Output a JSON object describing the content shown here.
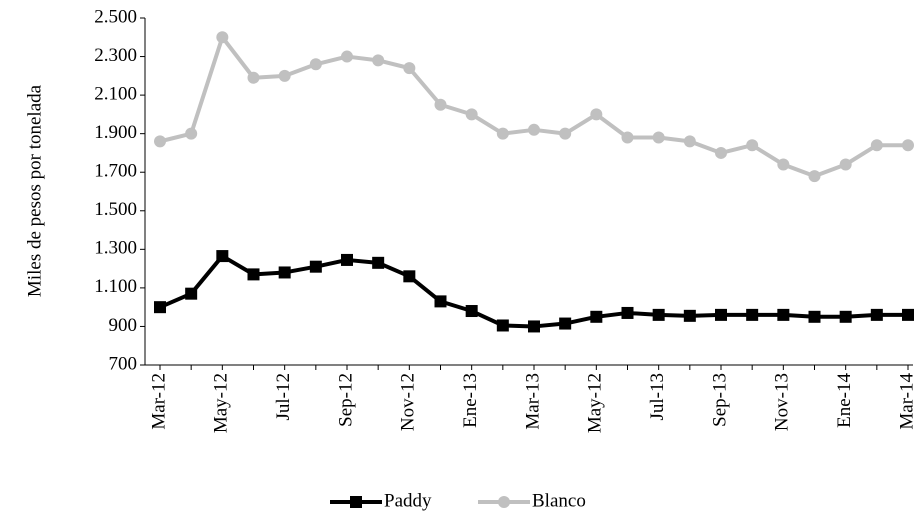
{
  "chart_data": {
    "type": "line",
    "y_label": "Miles de pesos por tonelada",
    "categories": [
      "Mar-12",
      null,
      "May-12",
      null,
      "Jul-12",
      null,
      "Sep-12",
      null,
      "Nov-12",
      null,
      "Ene-13",
      null,
      "Mar-13",
      null,
      "May-12",
      null,
      "Jul-13",
      null,
      "Sep-13",
      null,
      "Nov-13",
      null,
      "Ene-14",
      null,
      "Mar-14"
    ],
    "series": [
      {
        "name": "Paddy",
        "color": "#000000",
        "marker": "square",
        "values": [
          1000,
          1070,
          1265,
          1170,
          1180,
          1210,
          1245,
          1230,
          1160,
          1030,
          980,
          905,
          900,
          915,
          950,
          970,
          960,
          955,
          960,
          960,
          960,
          950,
          950,
          960,
          960
        ]
      },
      {
        "name": "Blanco",
        "color": "#c0c0c0",
        "marker": "circle",
        "values": [
          1860,
          1900,
          2400,
          2190,
          2200,
          2260,
          2300,
          2280,
          2240,
          2050,
          2000,
          1900,
          1920,
          1900,
          2000,
          1880,
          1880,
          1860,
          1800,
          1840,
          1740,
          1680,
          1740,
          1840,
          1840
        ]
      }
    ],
    "ylim": [
      700,
      2500
    ],
    "yticks": [
      700,
      900,
      {
        "value": 1100,
        "label": "1.100"
      },
      {
        "value": 1300,
        "label": "1.300"
      },
      {
        "value": 1500,
        "label": "1.500"
      },
      {
        "value": 1700,
        "label": "1.700"
      },
      {
        "value": 1900,
        "label": "1.900"
      },
      {
        "value": 2100,
        "label": "2.100"
      },
      {
        "value": 2300,
        "label": "2.300"
      },
      {
        "value": 2500,
        "label": "2.500"
      }
    ],
    "legend": "bottom"
  }
}
